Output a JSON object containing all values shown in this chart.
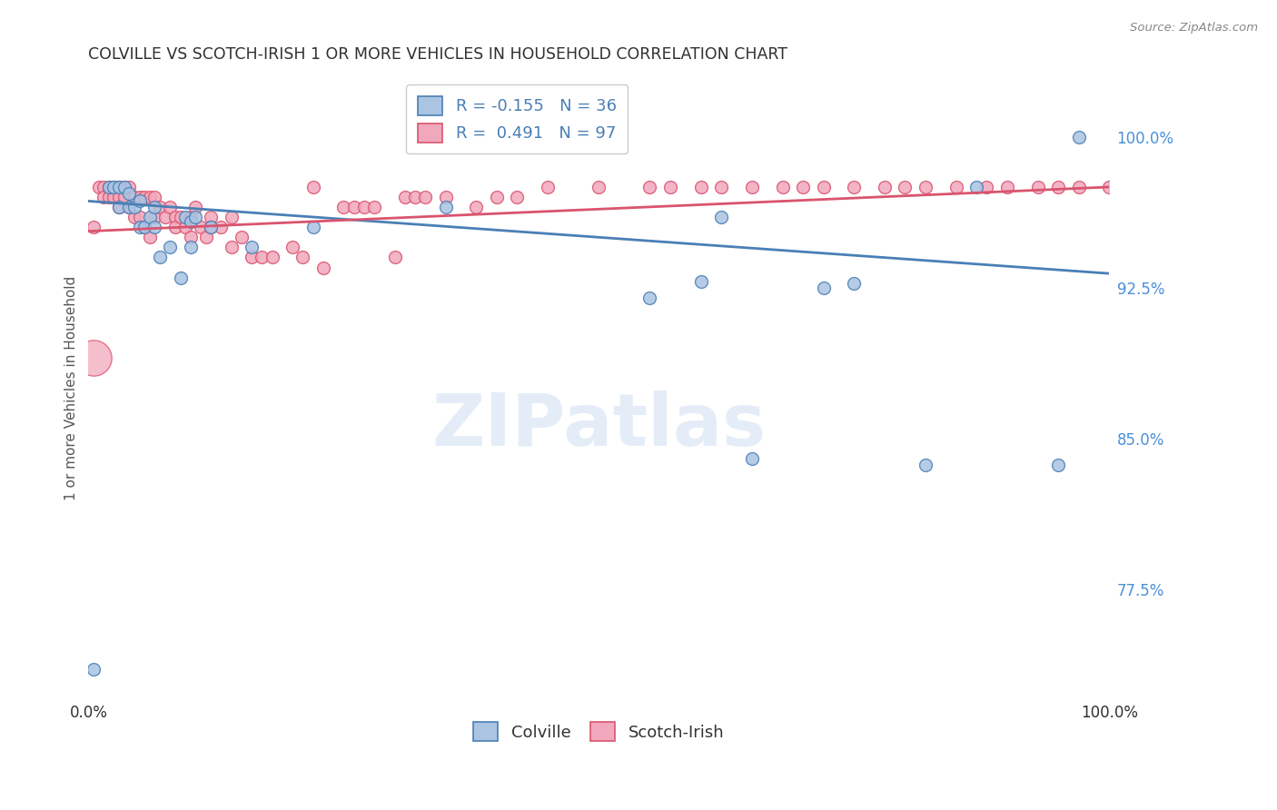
{
  "title": "COLVILLE VS SCOTCH-IRISH 1 OR MORE VEHICLES IN HOUSEHOLD CORRELATION CHART",
  "source": "Source: ZipAtlas.com",
  "ylabel": "1 or more Vehicles in Household",
  "ytick_labels": [
    "100.0%",
    "92.5%",
    "85.0%",
    "77.5%"
  ],
  "ytick_values": [
    1.0,
    0.925,
    0.85,
    0.775
  ],
  "xlim": [
    0.0,
    1.0
  ],
  "ylim": [
    0.72,
    1.03
  ],
  "legend_blue_r": "-0.155",
  "legend_blue_n": "36",
  "legend_pink_r": "0.491",
  "legend_pink_n": "97",
  "watermark": "ZIPatlas",
  "colville_color": "#aac4e2",
  "scotchirish_color": "#f2a8bc",
  "blue_line_color": "#4a7fb5",
  "pink_line_color": "#d9546e",
  "grid_color": "#d0d0d0",
  "title_color": "#303030",
  "axis_label_color": "#555555",
  "ytick_color": "#4a90d9",
  "xtick_color": "#303030",
  "colville_x": [
    0.005,
    0.02,
    0.025,
    0.03,
    0.03,
    0.035,
    0.04,
    0.04,
    0.045,
    0.05,
    0.05,
    0.055,
    0.06,
    0.065,
    0.065,
    0.07,
    0.08,
    0.09,
    0.095,
    0.1,
    0.1,
    0.105,
    0.12,
    0.16,
    0.22,
    0.35,
    0.55,
    0.6,
    0.62,
    0.65,
    0.72,
    0.75,
    0.82,
    0.87,
    0.95,
    0.97
  ],
  "colville_y": [
    0.735,
    0.975,
    0.975,
    0.975,
    0.965,
    0.975,
    0.972,
    0.965,
    0.965,
    0.968,
    0.955,
    0.955,
    0.96,
    0.955,
    0.965,
    0.94,
    0.945,
    0.93,
    0.96,
    0.958,
    0.945,
    0.96,
    0.955,
    0.945,
    0.955,
    0.965,
    0.92,
    0.928,
    0.96,
    0.84,
    0.925,
    0.927,
    0.837,
    0.975,
    0.837,
    1.0
  ],
  "scotchirish_x": [
    0.005,
    0.01,
    0.015,
    0.015,
    0.02,
    0.02,
    0.025,
    0.025,
    0.03,
    0.03,
    0.03,
    0.035,
    0.035,
    0.04,
    0.04,
    0.045,
    0.045,
    0.05,
    0.05,
    0.055,
    0.055,
    0.06,
    0.06,
    0.065,
    0.065,
    0.07,
    0.075,
    0.08,
    0.085,
    0.085,
    0.09,
    0.095,
    0.1,
    0.1,
    0.105,
    0.11,
    0.115,
    0.12,
    0.12,
    0.13,
    0.14,
    0.14,
    0.15,
    0.16,
    0.17,
    0.18,
    0.2,
    0.21,
    0.22,
    0.23,
    0.25,
    0.26,
    0.27,
    0.28,
    0.3,
    0.31,
    0.32,
    0.33,
    0.35,
    0.38,
    0.4,
    0.42,
    0.45,
    0.5,
    0.55,
    0.57,
    0.6,
    0.62,
    0.65,
    0.68,
    0.7,
    0.72,
    0.75,
    0.78,
    0.8,
    0.82,
    0.85,
    0.88,
    0.9,
    0.93,
    0.95,
    0.97,
    1.0
  ],
  "scotchirish_y": [
    0.955,
    0.975,
    0.975,
    0.97,
    0.975,
    0.97,
    0.975,
    0.97,
    0.975,
    0.97,
    0.965,
    0.975,
    0.97,
    0.975,
    0.965,
    0.97,
    0.96,
    0.97,
    0.96,
    0.97,
    0.955,
    0.97,
    0.95,
    0.97,
    0.96,
    0.965,
    0.96,
    0.965,
    0.96,
    0.955,
    0.96,
    0.955,
    0.96,
    0.95,
    0.965,
    0.955,
    0.95,
    0.96,
    0.955,
    0.955,
    0.96,
    0.945,
    0.95,
    0.94,
    0.94,
    0.94,
    0.945,
    0.94,
    0.975,
    0.935,
    0.965,
    0.965,
    0.965,
    0.965,
    0.94,
    0.97,
    0.97,
    0.97,
    0.97,
    0.965,
    0.97,
    0.97,
    0.975,
    0.975,
    0.975,
    0.975,
    0.975,
    0.975,
    0.975,
    0.975,
    0.975,
    0.975,
    0.975,
    0.975,
    0.975,
    0.975,
    0.975,
    0.975,
    0.975,
    0.975,
    0.975,
    0.975,
    0.975
  ],
  "scotchirish_large_x": [
    0.005
  ],
  "scotchirish_large_y": [
    0.89
  ],
  "marker_size": 100,
  "marker_size_large": 800,
  "blue_line_x0": 0.0,
  "blue_line_y0": 0.968,
  "blue_line_x1": 1.0,
  "blue_line_y1": 0.932,
  "pink_line_x0": 0.0,
  "pink_line_y0": 0.953,
  "pink_line_x1": 1.0,
  "pink_line_y1": 0.975
}
